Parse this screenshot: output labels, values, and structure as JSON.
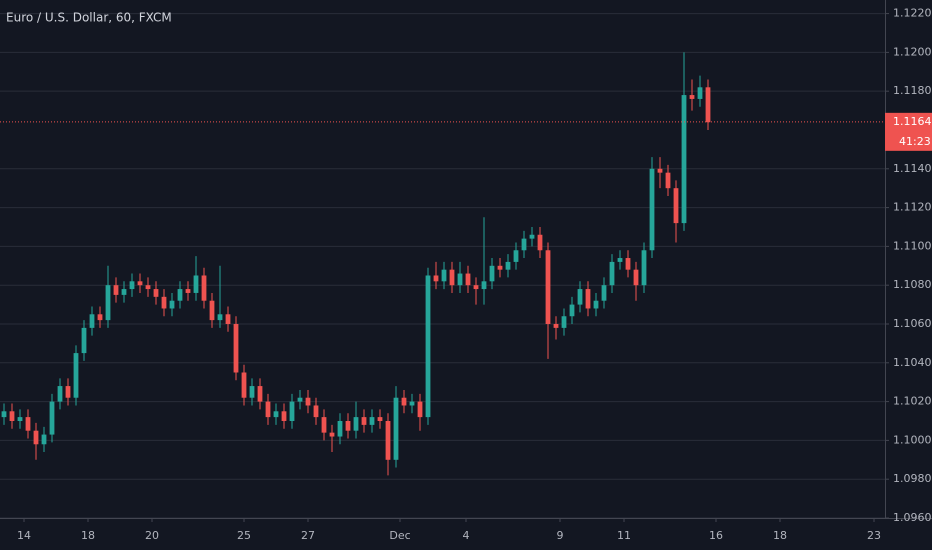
{
  "chart_data": {
    "type": "candlestick",
    "title": "Euro / U.S. Dollar, 60, FXCM",
    "up_color": "#26a69a",
    "down_color": "#ef5350",
    "grid": true,
    "xlim": [
      0,
      110.625
    ],
    "ylim": [
      1.096,
      1.1227
    ],
    "xticks": [
      {
        "value": 3,
        "label": "14"
      },
      {
        "value": 11,
        "label": "18"
      },
      {
        "value": 19,
        "label": "20"
      },
      {
        "value": 30.5,
        "label": "25"
      },
      {
        "value": 38.5,
        "label": "27"
      },
      {
        "value": 50,
        "label": "Dec"
      },
      {
        "value": 58.25,
        "label": "4"
      },
      {
        "value": 70,
        "label": "9"
      },
      {
        "value": 78,
        "label": "11"
      },
      {
        "value": 89.5,
        "label": "16"
      },
      {
        "value": 97.5,
        "label": "18"
      },
      {
        "value": 109.25,
        "label": "23"
      }
    ],
    "yticks": [
      {
        "value": 1.096,
        "label": "1.09600"
      },
      {
        "value": 1.098,
        "label": "1.09800"
      },
      {
        "value": 1.1,
        "label": "1.10000"
      },
      {
        "value": 1.102,
        "label": "1.10200"
      },
      {
        "value": 1.104,
        "label": "1.10400"
      },
      {
        "value": 1.106,
        "label": "1.10600"
      },
      {
        "value": 1.108,
        "label": "1.10800"
      },
      {
        "value": 1.11,
        "label": "1.11000"
      },
      {
        "value": 1.112,
        "label": "1.11200"
      },
      {
        "value": 1.114,
        "label": "1.11400"
      },
      {
        "value": 1.118,
        "label": "1.11800"
      },
      {
        "value": 1.12,
        "label": "1.12000"
      },
      {
        "value": 1.122,
        "label": "1.12200"
      }
    ],
    "last_price": 1.11642,
    "countdown": "41:23",
    "open": [
      1.1012,
      1.1015,
      1.101,
      1.1012,
      1.1005,
      1.0998,
      1.1003,
      1.102,
      1.1028,
      1.1022,
      1.1045,
      1.1058,
      1.1065,
      1.1062,
      1.108,
      1.1075,
      1.1078,
      1.1082,
      1.108,
      1.1078,
      1.1074,
      1.1068,
      1.1072,
      1.1078,
      1.1076,
      1.1085,
      1.1072,
      1.1062,
      1.1065,
      1.106,
      1.1035,
      1.1022,
      1.1028,
      1.102,
      1.1012,
      1.1015,
      1.101,
      1.102,
      1.1022,
      1.1018,
      1.1012,
      1.1004,
      1.1002,
      1.101,
      1.1005,
      1.1012,
      1.1008,
      1.1012,
      1.101,
      1.099,
      1.1022,
      1.1018,
      1.102,
      1.1012,
      1.1085,
      1.1082,
      1.1088,
      1.108,
      1.1086,
      1.108,
      1.1078,
      1.1082,
      1.109,
      1.1088,
      1.1092,
      1.1098,
      1.1104,
      1.1106,
      1.1098,
      1.106,
      1.1058,
      1.1064,
      1.107,
      1.1078,
      1.1068,
      1.1072,
      1.108,
      1.1092,
      1.1094,
      1.1088,
      1.108,
      1.1098,
      1.114,
      1.1138,
      1.113,
      1.1112,
      1.1178,
      1.1176,
      1.1182
    ],
    "high": [
      1.1019,
      1.1019,
      1.1016,
      1.1016,
      1.1009,
      1.1007,
      1.1024,
      1.1032,
      1.1032,
      1.1049,
      1.1062,
      1.1069,
      1.1069,
      1.109,
      1.1084,
      1.1082,
      1.1086,
      1.1086,
      1.1084,
      1.1082,
      1.1078,
      1.1076,
      1.1082,
      1.1082,
      1.1095,
      1.1089,
      1.1076,
      1.109,
      1.1069,
      1.1064,
      1.1039,
      1.1032,
      1.1032,
      1.1024,
      1.1019,
      1.1019,
      1.1024,
      1.1026,
      1.1026,
      1.1022,
      1.1016,
      1.1008,
      1.1014,
      1.1014,
      1.102,
      1.1016,
      1.1016,
      1.1016,
      1.1014,
      1.1028,
      1.1026,
      1.1024,
      1.1024,
      1.1089,
      1.1092,
      1.1092,
      1.1092,
      1.1092,
      1.109,
      1.1084,
      1.1115,
      1.1094,
      1.1094,
      1.1096,
      1.1102,
      1.1108,
      1.111,
      1.111,
      1.1102,
      1.1064,
      1.1068,
      1.1074,
      1.1082,
      1.1082,
      1.1076,
      1.1084,
      1.1096,
      1.1098,
      1.1098,
      1.1092,
      1.1102,
      1.1146,
      1.1146,
      1.1142,
      1.1134,
      1.12,
      1.1186,
      1.1188,
      1.1186
    ],
    "low": [
      1.1008,
      1.1006,
      1.1006,
      1.1001,
      1.099,
      1.0994,
      1.0999,
      1.1016,
      1.1018,
      1.1018,
      1.1041,
      1.1054,
      1.1058,
      1.1058,
      1.1071,
      1.1071,
      1.1074,
      1.1076,
      1.1074,
      1.107,
      1.1064,
      1.1064,
      1.1068,
      1.1072,
      1.1072,
      1.1068,
      1.1058,
      1.1058,
      1.1056,
      1.1031,
      1.1018,
      1.1018,
      1.1016,
      1.1008,
      1.1008,
      1.1006,
      1.1006,
      1.1016,
      1.1014,
      1.1008,
      1.1,
      1.0994,
      1.0998,
      1.1001,
      1.1001,
      1.1004,
      1.1004,
      1.1006,
      1.0982,
      1.0986,
      1.1014,
      1.1014,
      1.1005,
      1.1008,
      1.1078,
      1.1078,
      1.1076,
      1.1076,
      1.1076,
      1.107,
      1.107,
      1.1078,
      1.1084,
      1.1084,
      1.1088,
      1.1094,
      1.11,
      1.1094,
      1.1042,
      1.1052,
      1.1054,
      1.106,
      1.1066,
      1.1064,
      1.1064,
      1.1068,
      1.1076,
      1.1088,
      1.1084,
      1.1072,
      1.1076,
      1.1094,
      1.113,
      1.1126,
      1.1102,
      1.1108,
      1.117,
      1.1172,
      1.116
    ],
    "close": [
      1.1015,
      1.101,
      1.1012,
      1.1005,
      1.0998,
      1.1003,
      1.102,
      1.1028,
      1.1022,
      1.1045,
      1.1058,
      1.1065,
      1.1062,
      1.108,
      1.1075,
      1.1078,
      1.1082,
      1.108,
      1.1078,
      1.1074,
      1.1068,
      1.1072,
      1.1078,
      1.1076,
      1.1085,
      1.1072,
      1.1062,
      1.1065,
      1.106,
      1.1035,
      1.1022,
      1.1028,
      1.102,
      1.1012,
      1.1015,
      1.101,
      1.102,
      1.1022,
      1.1018,
      1.1012,
      1.1004,
      1.1002,
      1.101,
      1.1005,
      1.1012,
      1.1008,
      1.1012,
      1.101,
      1.099,
      1.1022,
      1.1018,
      1.102,
      1.1012,
      1.1085,
      1.1082,
      1.1088,
      1.108,
      1.1086,
      1.108,
      1.1078,
      1.1082,
      1.109,
      1.1088,
      1.1092,
      1.1098,
      1.1104,
      1.1106,
      1.1098,
      1.106,
      1.1058,
      1.1064,
      1.107,
      1.1078,
      1.1068,
      1.1072,
      1.108,
      1.1092,
      1.1094,
      1.1088,
      1.108,
      1.1098,
      1.114,
      1.1138,
      1.113,
      1.1112,
      1.1178,
      1.1176,
      1.1182,
      1.1164
    ]
  }
}
